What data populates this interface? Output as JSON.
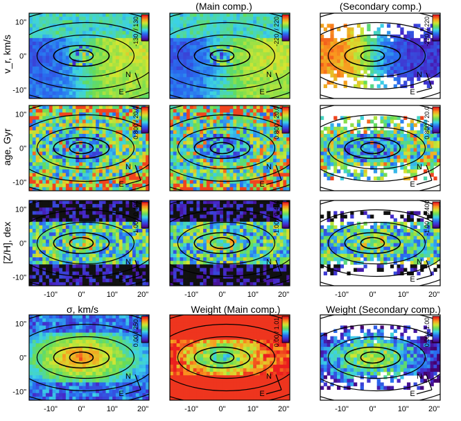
{
  "chart_data": {
    "type": "heatmap",
    "column_titles": [
      "",
      "(Main comp.)",
      "(Secondary comp.)"
    ],
    "row_labels": [
      "v_r, km/s",
      "age, Gyr",
      "[Z/H], dex",
      "σ, km/s"
    ],
    "bottom_titles": [
      "",
      "Weight (Main comp.)",
      "Weight (Secondary comp.)"
    ],
    "x_ticks": [
      "-10\"",
      "0\"",
      "10\"",
      "20\""
    ],
    "x_tick_values": [
      -10,
      0,
      10,
      20
    ],
    "y_ticks": [
      "10\"",
      "0\"",
      "-10\""
    ],
    "y_tick_values": [
      10,
      0,
      -10
    ],
    "xlim": [
      -17,
      22
    ],
    "ylim": [
      -12.5,
      12.5
    ],
    "compass": {
      "north": "N",
      "east": "E"
    },
    "colormap": "rainbow (purple → blue → cyan → green → yellow → red)",
    "panels": [
      {
        "id": "vr-all",
        "row": 0,
        "col": 0,
        "colorbar_label": "-130. / 130.",
        "range": [
          -130,
          130
        ],
        "coverage": "full",
        "pattern": "rotation"
      },
      {
        "id": "vr-main",
        "row": 0,
        "col": 1,
        "colorbar_label": "-220. / 220.",
        "range": [
          -220,
          220
        ],
        "coverage": "full",
        "pattern": "rotation"
      },
      {
        "id": "vr-second",
        "row": 0,
        "col": 2,
        "colorbar_label": "-220. / 220.",
        "range": [
          -220,
          220
        ],
        "coverage": "partial",
        "pattern": "counter-rotation"
      },
      {
        "id": "age-all",
        "row": 1,
        "col": 0,
        "colorbar_label": "0.800 / 20.0",
        "range": [
          0.8,
          20.0
        ],
        "coverage": "full",
        "pattern": "age"
      },
      {
        "id": "age-main",
        "row": 1,
        "col": 1,
        "colorbar_label": "0.800 / 20.0",
        "range": [
          0.8,
          20.0
        ],
        "coverage": "full",
        "pattern": "age"
      },
      {
        "id": "age-second",
        "row": 1,
        "col": 2,
        "colorbar_label": "0.800 / 20.0",
        "range": [
          0.8,
          20.0
        ],
        "coverage": "partial",
        "pattern": "age"
      },
      {
        "id": "zh-all",
        "row": 2,
        "col": 0,
        "colorbar_label": "-1.00 / 0.400",
        "range": [
          -1.0,
          0.4
        ],
        "coverage": "full",
        "pattern": "metal"
      },
      {
        "id": "zh-main",
        "row": 2,
        "col": 1,
        "colorbar_label": "-1.00 / 0.400",
        "range": [
          -1.0,
          0.4
        ],
        "coverage": "full",
        "pattern": "metal"
      },
      {
        "id": "zh-second",
        "row": 2,
        "col": 2,
        "colorbar_label": "-1.00 / 0.400",
        "range": [
          -1.0,
          0.4
        ],
        "coverage": "partial",
        "pattern": "metal"
      },
      {
        "id": "sigma",
        "row": 3,
        "col": 0,
        "colorbar_label": "0.00 / 250.",
        "range": [
          0,
          250
        ],
        "coverage": "full",
        "pattern": "sigma"
      },
      {
        "id": "weight-main",
        "row": 3,
        "col": 1,
        "colorbar_label": "0.00 / 1.01",
        "range": [
          0,
          1.01
        ],
        "coverage": "full",
        "pattern": "weight-main"
      },
      {
        "id": "weight-second",
        "row": 3,
        "col": 2,
        "colorbar_label": "0.00 / 1.00",
        "range": [
          0,
          1.0
        ],
        "coverage": "partial",
        "pattern": "weight-second"
      }
    ],
    "colors": {
      "missing": "#ffffff",
      "contour": "#000000",
      "frame": "#000000"
    }
  }
}
